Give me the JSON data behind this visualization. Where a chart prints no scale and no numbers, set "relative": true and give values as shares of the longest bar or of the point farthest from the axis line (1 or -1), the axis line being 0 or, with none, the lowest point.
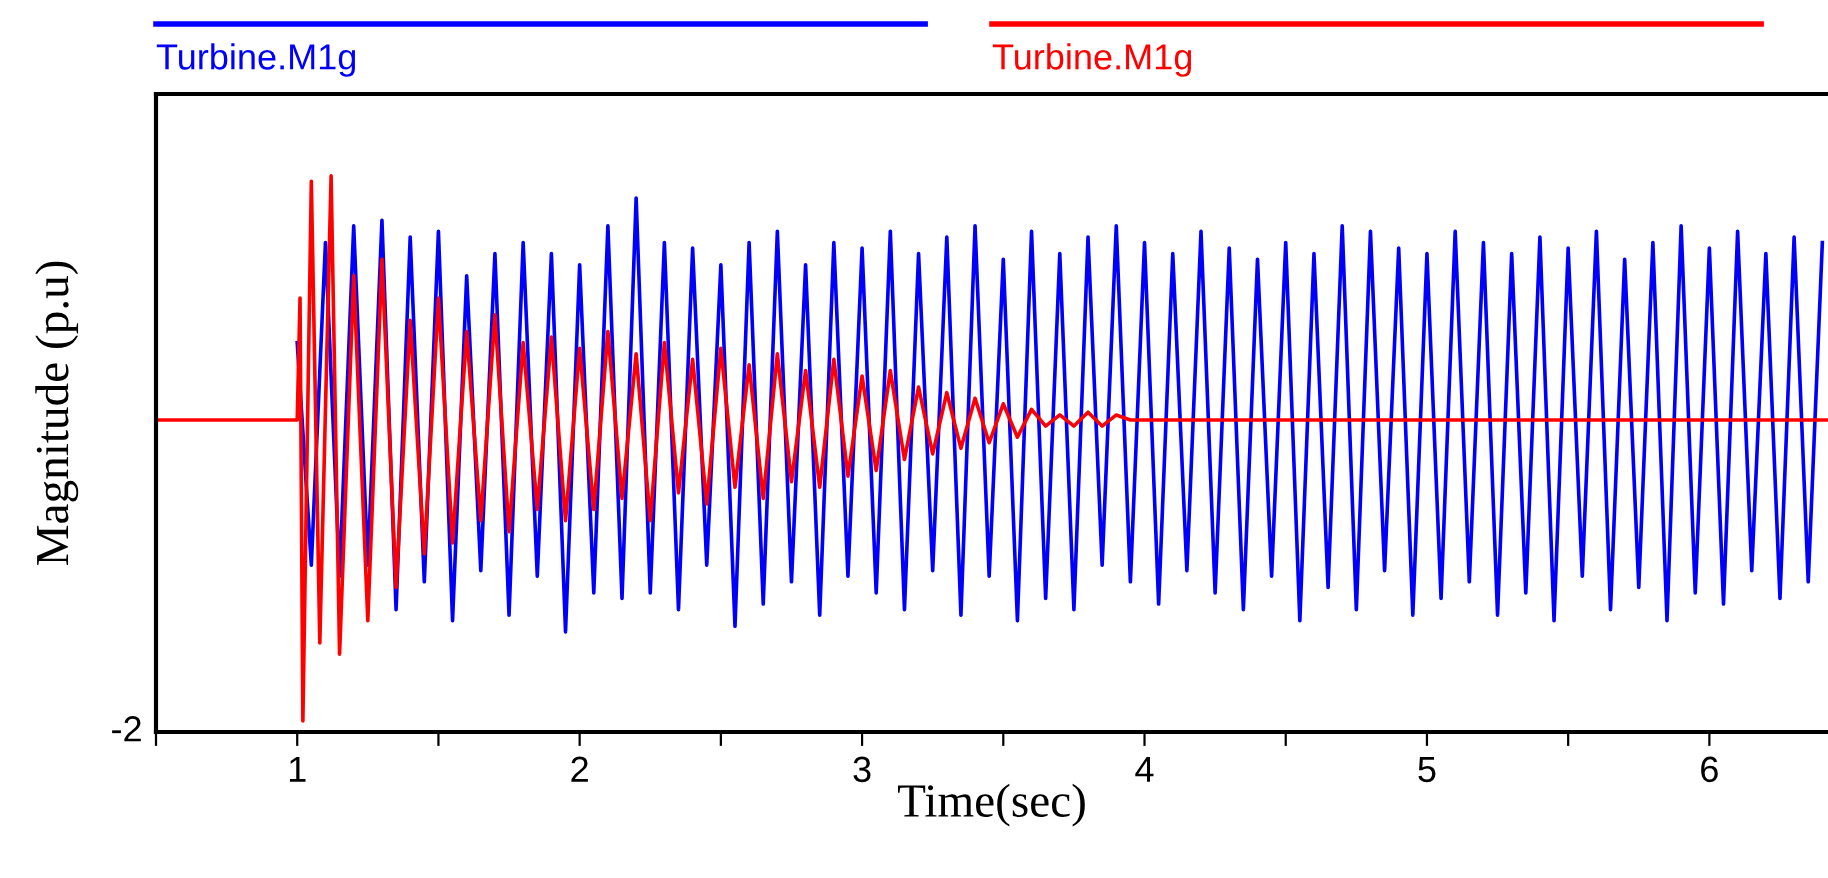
{
  "chart_data": {
    "type": "line",
    "relative": true,
    "xlabel": "Time(sec)",
    "ylabel": "Magnitude (p.u)",
    "legend": "top",
    "grid": false,
    "marker": "none",
    "line_style": "solid",
    "xlim": [
      0.5,
      6.42
    ],
    "xticks": [
      {
        "value": 0.5,
        "label": null
      },
      1,
      {
        "value": 1.5,
        "label": null
      },
      2,
      {
        "value": 2.5,
        "label": null
      },
      3,
      {
        "value": 3.5,
        "label": null
      },
      4,
      {
        "value": 4.5,
        "label": null
      },
      5,
      {
        "value": 5.5,
        "label": null
      },
      6
    ],
    "annotations": [
      "-2"
    ],
    "series": [
      {
        "name": "Turbine.M1g",
        "color": "#0000ff",
        "x": [
          1.0,
          1.05,
          1.1,
          1.15,
          1.2,
          1.25,
          1.3,
          1.35,
          1.4,
          1.45,
          1.5,
          1.55,
          1.6,
          1.65,
          1.7,
          1.75,
          1.8,
          1.85,
          1.9,
          1.95,
          2.0,
          2.05,
          2.1,
          2.15,
          2.2,
          2.25,
          2.3,
          2.35,
          2.4,
          2.45,
          2.5,
          2.55,
          2.6,
          2.65,
          2.7,
          2.75,
          2.8,
          2.85,
          2.9,
          2.95,
          3.0,
          3.05,
          3.1,
          3.15,
          3.2,
          3.25,
          3.3,
          3.35,
          3.4,
          3.45,
          3.5,
          3.55,
          3.6,
          3.65,
          3.7,
          3.75,
          3.8,
          3.85,
          3.9,
          3.95,
          4.0,
          4.05,
          4.1,
          4.15,
          4.2,
          4.25,
          4.3,
          4.35,
          4.4,
          4.45,
          4.5,
          4.55,
          4.6,
          4.65,
          4.7,
          4.75,
          4.8,
          4.85,
          4.9,
          4.95,
          5.0,
          5.05,
          5.1,
          5.15,
          5.2,
          5.25,
          5.3,
          5.35,
          5.4,
          5.45,
          5.5,
          5.55,
          5.6,
          5.65,
          5.7,
          5.75,
          5.8,
          5.85,
          5.9,
          5.95,
          6.0,
          6.05,
          6.1,
          6.15,
          6.2,
          6.25,
          6.3,
          6.35,
          6.4
        ],
        "values": [
          0.7,
          0.3,
          0.88,
          0.28,
          0.91,
          0.3,
          0.92,
          0.22,
          0.89,
          0.27,
          0.9,
          0.2,
          0.82,
          0.29,
          0.86,
          0.21,
          0.88,
          0.28,
          0.86,
          0.18,
          0.84,
          0.25,
          0.91,
          0.24,
          0.96,
          0.25,
          0.88,
          0.22,
          0.87,
          0.3,
          0.84,
          0.19,
          0.88,
          0.23,
          0.9,
          0.27,
          0.84,
          0.21,
          0.88,
          0.28,
          0.87,
          0.25,
          0.9,
          0.22,
          0.86,
          0.29,
          0.89,
          0.21,
          0.91,
          0.28,
          0.85,
          0.2,
          0.9,
          0.24,
          0.86,
          0.22,
          0.89,
          0.3,
          0.91,
          0.27,
          0.88,
          0.23,
          0.86,
          0.29,
          0.9,
          0.25,
          0.87,
          0.22,
          0.85,
          0.28,
          0.88,
          0.2,
          0.86,
          0.26,
          0.91,
          0.22,
          0.9,
          0.29,
          0.87,
          0.21,
          0.86,
          0.24,
          0.9,
          0.27,
          0.88,
          0.21,
          0.86,
          0.25,
          0.89,
          0.2,
          0.87,
          0.28,
          0.9,
          0.22,
          0.85,
          0.26,
          0.88,
          0.2,
          0.91,
          0.25,
          0.87,
          0.23,
          0.9,
          0.29,
          0.86,
          0.24,
          0.89,
          0.27,
          0.88
        ]
      },
      {
        "name": "Turbine.M1g",
        "color": "#ff0000",
        "x": [
          0.5,
          1.0,
          1.01,
          1.02,
          1.05,
          1.08,
          1.12,
          1.15,
          1.2,
          1.25,
          1.3,
          1.35,
          1.4,
          1.45,
          1.5,
          1.55,
          1.6,
          1.65,
          1.7,
          1.75,
          1.8,
          1.85,
          1.9,
          1.95,
          2.0,
          2.05,
          2.1,
          2.15,
          2.2,
          2.25,
          2.3,
          2.35,
          2.4,
          2.45,
          2.5,
          2.55,
          2.6,
          2.65,
          2.7,
          2.75,
          2.8,
          2.85,
          2.9,
          2.95,
          3.0,
          3.05,
          3.1,
          3.15,
          3.2,
          3.25,
          3.3,
          3.35,
          3.4,
          3.45,
          3.5,
          3.55,
          3.6,
          3.65,
          3.7,
          3.75,
          3.8,
          3.85,
          3.9,
          3.95,
          6.42
        ],
        "values": [
          0.561,
          0.561,
          0.78,
          0.02,
          0.99,
          0.16,
          1.0,
          0.14,
          0.82,
          0.2,
          0.85,
          0.26,
          0.74,
          0.32,
          0.78,
          0.34,
          0.72,
          0.38,
          0.75,
          0.36,
          0.7,
          0.4,
          0.71,
          0.38,
          0.69,
          0.4,
          0.72,
          0.42,
          0.68,
          0.38,
          0.7,
          0.43,
          0.67,
          0.41,
          0.69,
          0.44,
          0.66,
          0.42,
          0.68,
          0.45,
          0.65,
          0.44,
          0.67,
          0.46,
          0.64,
          0.47,
          0.65,
          0.49,
          0.62,
          0.5,
          0.61,
          0.51,
          0.6,
          0.52,
          0.59,
          0.53,
          0.58,
          0.55,
          0.57,
          0.55,
          0.575,
          0.55,
          0.57,
          0.561,
          0.561
        ]
      }
    ]
  }
}
